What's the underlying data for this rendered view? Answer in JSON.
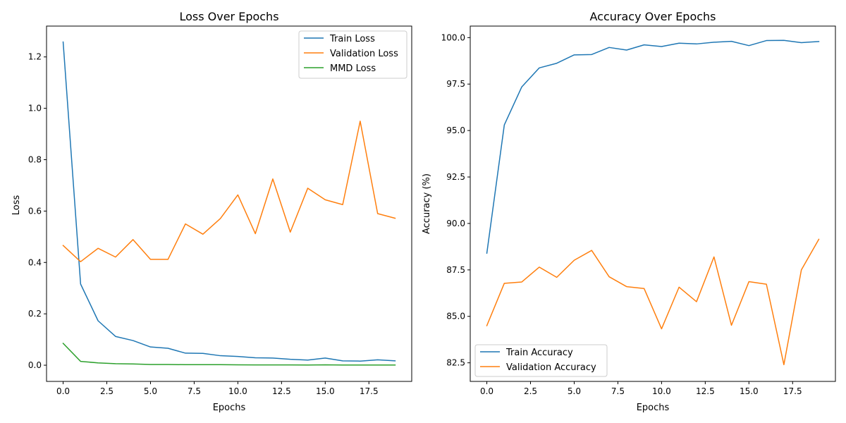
{
  "chart_data": [
    {
      "type": "line",
      "title": "Loss Over Epochs",
      "xlabel": "Epochs",
      "ylabel": "Loss",
      "xlim": [
        -0.95,
        19.95
      ],
      "ylim": [
        -0.063,
        1.32
      ],
      "xticks": [
        0.0,
        2.5,
        5.0,
        7.5,
        10.0,
        12.5,
        15.0,
        17.5
      ],
      "xtick_labels": [
        "0.0",
        "2.5",
        "5.0",
        "7.5",
        "10.0",
        "12.5",
        "15.0",
        "17.5"
      ],
      "yticks": [
        0.0,
        0.2,
        0.4,
        0.6,
        0.8,
        1.0,
        1.2
      ],
      "ytick_labels": [
        "0.0",
        "0.2",
        "0.4",
        "0.6",
        "0.8",
        "1.0",
        "1.2"
      ],
      "grid": false,
      "legend_position": "top-right",
      "x": [
        0,
        1,
        2,
        3,
        4,
        5,
        6,
        7,
        8,
        9,
        10,
        11,
        12,
        13,
        14,
        15,
        16,
        17,
        18,
        19
      ],
      "series": [
        {
          "name": "Train Loss",
          "color": "#1f77b4",
          "values": [
            1.258,
            0.316,
            0.173,
            0.112,
            0.096,
            0.071,
            0.066,
            0.047,
            0.046,
            0.037,
            0.034,
            0.029,
            0.028,
            0.023,
            0.02,
            0.028,
            0.017,
            0.016,
            0.021,
            0.017
          ]
        },
        {
          "name": "Validation Loss",
          "color": "#ff7f0e",
          "values": [
            0.466,
            0.403,
            0.455,
            0.421,
            0.489,
            0.412,
            0.412,
            0.55,
            0.51,
            0.571,
            0.663,
            0.512,
            0.725,
            0.518,
            0.689,
            0.644,
            0.625,
            0.95,
            0.59,
            0.572
          ]
        },
        {
          "name": "MMD Loss",
          "color": "#2ca02c",
          "values": [
            0.085,
            0.015,
            0.009,
            0.006,
            0.005,
            0.003,
            0.003,
            0.002,
            0.002,
            0.002,
            0.0015,
            0.0013,
            0.0012,
            0.001,
            0.0008,
            0.0015,
            0.0007,
            0.0007,
            0.0007,
            0.0007
          ]
        }
      ]
    },
    {
      "type": "line",
      "title": "Accuracy Over Epochs",
      "xlabel": "Epochs",
      "ylabel": "Accuracy (%)",
      "xlim": [
        -0.95,
        19.95
      ],
      "ylim": [
        81.5,
        100.62
      ],
      "xticks": [
        0.0,
        2.5,
        5.0,
        7.5,
        10.0,
        12.5,
        15.0,
        17.5
      ],
      "xtick_labels": [
        "0.0",
        "2.5",
        "5.0",
        "7.5",
        "10.0",
        "12.5",
        "15.0",
        "17.5"
      ],
      "yticks": [
        82.5,
        85.0,
        87.5,
        90.0,
        92.5,
        95.0,
        97.5,
        100.0
      ],
      "ytick_labels": [
        "82.5",
        "85.0",
        "87.5",
        "90.0",
        "92.5",
        "95.0",
        "97.5",
        "100.0"
      ],
      "grid": false,
      "legend_position": "bottom-left",
      "x": [
        0,
        1,
        2,
        3,
        4,
        5,
        6,
        7,
        8,
        9,
        10,
        11,
        12,
        13,
        14,
        15,
        16,
        17,
        18,
        19
      ],
      "series": [
        {
          "name": "Train Accuracy",
          "color": "#1f77b4",
          "values": [
            88.4,
            95.3,
            97.35,
            98.37,
            98.62,
            99.07,
            99.09,
            99.47,
            99.33,
            99.61,
            99.52,
            99.7,
            99.66,
            99.75,
            99.8,
            99.57,
            99.84,
            99.85,
            99.73,
            99.79
          ]
        },
        {
          "name": "Validation Accuracy",
          "color": "#ff7f0e",
          "values": [
            84.5,
            86.78,
            86.85,
            87.65,
            87.1,
            88.02,
            88.55,
            87.13,
            86.6,
            86.5,
            84.33,
            86.57,
            85.79,
            88.2,
            84.52,
            86.87,
            86.73,
            82.4,
            87.5,
            89.15
          ]
        }
      ]
    }
  ]
}
